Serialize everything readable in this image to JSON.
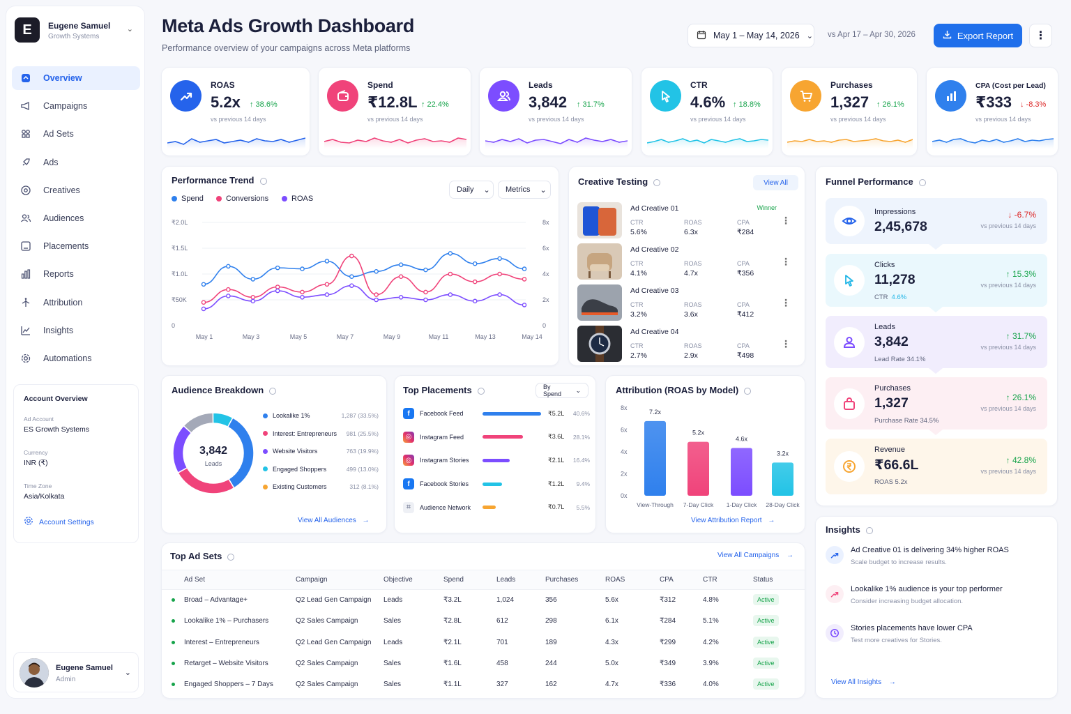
{
  "workspace": {
    "initial": "E",
    "name": "Eugene Samuel",
    "org": "Growth Systems"
  },
  "nav": [
    {
      "label": "Overview",
      "icon": "overview-icon",
      "active": true
    },
    {
      "label": "Campaigns",
      "icon": "megaphone-icon"
    },
    {
      "label": "Ad Sets",
      "icon": "grid-icon"
    },
    {
      "label": "Ads",
      "icon": "rocket-icon"
    },
    {
      "label": "Creatives",
      "icon": "target-icon"
    },
    {
      "label": "Audiences",
      "icon": "users-icon"
    },
    {
      "label": "Placements",
      "icon": "layout-icon"
    },
    {
      "label": "Reports",
      "icon": "bar-chart-icon"
    },
    {
      "label": "Attribution",
      "icon": "route-icon"
    },
    {
      "label": "Insights",
      "icon": "trend-icon"
    },
    {
      "label": "Automations",
      "icon": "gear-icon"
    }
  ],
  "account": {
    "title": "Account Overview",
    "ad_account_label": "Ad Account",
    "ad_account": "ES Growth Systems",
    "currency_label": "Currency",
    "currency": "INR (₹)",
    "timezone_label": "Time Zone",
    "timezone": "Asia/Kolkata",
    "settings": "Account Settings"
  },
  "user": {
    "name": "Eugene Samuel",
    "role": "Admin"
  },
  "header": {
    "title": "Meta Ads Growth Dashboard",
    "subtitle": "Performance overview of your campaigns across Meta platforms",
    "date_range": "May 1 – May 14, 2026",
    "compare": "vs Apr 17 – Apr 30, 2026",
    "export": "Export Report"
  },
  "kpis": [
    {
      "label": "ROAS",
      "value": "5.2x",
      "change": "↑ 38.6%",
      "sub": "vs previous 14 days",
      "color": "#2563eb",
      "icon": "trend-up-icon"
    },
    {
      "label": "Spend",
      "value": "₹12.8L",
      "change": "↑ 22.4%",
      "sub": "vs previous 14 days",
      "color": "#f0437a",
      "icon": "wallet-icon"
    },
    {
      "label": "Leads",
      "value": "3,842",
      "change": "↑ 31.7%",
      "sub": "vs previous 14 days",
      "color": "#7c4dff",
      "icon": "users-icon"
    },
    {
      "label": "CTR",
      "value": "4.6%",
      "change": "↑ 18.8%",
      "sub": "vs previous 14 days",
      "color": "#22c3e6",
      "icon": "cursor-icon"
    },
    {
      "label": "Purchases",
      "value": "1,327",
      "change": "↑ 26.1%",
      "sub": "vs previous 14 days",
      "color": "#f7a531",
      "icon": "cart-icon"
    },
    {
      "label": "CPA (Cost per Lead)",
      "value": "₹333",
      "change": "↓ -8.3%",
      "sub": "vs previous 14 days",
      "color": "#2f80ed",
      "icon": "bar-chart-icon",
      "negative": true
    }
  ],
  "trend": {
    "title": "Performance Trend",
    "interval": "Daily",
    "metrics": "Metrics",
    "legend": [
      {
        "name": "Spend",
        "color": "#2f80ed"
      },
      {
        "name": "Conversions",
        "color": "#f0437a"
      },
      {
        "name": "ROAS",
        "color": "#7c4dff"
      }
    ],
    "y_left": [
      "₹2.0L",
      "₹1.5L",
      "₹1.0L",
      "₹50K",
      "0"
    ],
    "y_right": [
      "8x",
      "6x",
      "4x",
      "2x",
      "0"
    ],
    "x_labels": [
      "May 1",
      "May 3",
      "May 5",
      "May 7",
      "May 9",
      "May 11",
      "May 13",
      "May 14"
    ]
  },
  "chart_data": {
    "type": "line",
    "x": [
      "May 1",
      "May 2",
      "May 3",
      "May 4",
      "May 5",
      "May 6",
      "May 7",
      "May 8",
      "May 9",
      "May 10",
      "May 11",
      "May 12",
      "May 13",
      "May 14"
    ],
    "series": [
      {
        "name": "Spend",
        "values": [
          80000,
          115000,
          90000,
          112000,
          110000,
          125000,
          95000,
          105000,
          118000,
          108000,
          140000,
          120000,
          130000,
          110000
        ]
      },
      {
        "name": "Conversions",
        "values": [
          45000,
          70000,
          55000,
          75000,
          65000,
          80000,
          135000,
          60000,
          95000,
          65000,
          100000,
          85000,
          100000,
          90000
        ]
      },
      {
        "name": "ROAS",
        "values": [
          1.3,
          2.3,
          1.9,
          2.7,
          2.2,
          2.4,
          3.1,
          2.0,
          2.2,
          2.0,
          2.4,
          1.9,
          2.4,
          1.6
        ]
      }
    ],
    "ylim": [
      0,
      200000
    ],
    "y2lim": [
      0,
      8
    ],
    "legend": "top-left",
    "grid": true
  },
  "creatives": {
    "title": "Creative Testing",
    "view_all": "View All",
    "items": [
      {
        "name": "Ad Creative 01",
        "badge": "Winner",
        "ctr": "5.6%",
        "roas": "6.3x",
        "cpa": "₹284",
        "thumb": "phone-image"
      },
      {
        "name": "Ad Creative 02",
        "badge": "",
        "ctr": "4.1%",
        "roas": "4.7x",
        "cpa": "₹356",
        "thumb": "chair-image"
      },
      {
        "name": "Ad Creative 03",
        "badge": "",
        "ctr": "3.2%",
        "roas": "3.6x",
        "cpa": "₹412",
        "thumb": "shoe-image"
      },
      {
        "name": "Ad Creative 04",
        "badge": "",
        "ctr": "2.7%",
        "roas": "2.9x",
        "cpa": "₹498",
        "thumb": "watch-image"
      }
    ],
    "labels": {
      "ctr": "CTR",
      "roas": "ROAS",
      "cpa": "CPA"
    }
  },
  "funnel": {
    "title": "Funnel Performance",
    "stages": [
      {
        "label": "Impressions",
        "value": "2,45,678",
        "change": "↓ -6.7%",
        "sub": "vs previous 14 days",
        "extra": "",
        "negative": true,
        "color": "#2563eb",
        "bg": "#eef4fd",
        "icon": "eye-icon"
      },
      {
        "label": "Clicks",
        "value": "11,278",
        "change": "↑ 15.3%",
        "sub": "vs previous 14 days",
        "extra": "CTR",
        "extra_value": "4.6%",
        "color": "#22b6e6",
        "bg": "#eaf8fd",
        "icon": "cursor-icon"
      },
      {
        "label": "Leads",
        "value": "3,842",
        "change": "↑ 31.7%",
        "sub": "vs previous 14 days",
        "extra": "Lead Rate  34.1%",
        "color": "#7c4dff",
        "bg": "#f1edfd",
        "icon": "user-icon"
      },
      {
        "label": "Purchases",
        "value": "1,327",
        "change": "↑ 26.1%",
        "sub": "vs previous 14 days",
        "extra": "Purchase Rate  34.5%",
        "color": "#f0437a",
        "bg": "#fdeff3",
        "icon": "bag-icon"
      },
      {
        "label": "Revenue",
        "value": "₹66.6L",
        "change": "↑ 42.8%",
        "sub": "vs previous 14 days",
        "extra": "ROAS  5.2x",
        "color": "#f7a531",
        "bg": "#fef6ea",
        "icon": "rupee-icon"
      }
    ]
  },
  "audience": {
    "title": "Audience Breakdown",
    "center_value": "3,842",
    "center_label": "Leads",
    "items": [
      {
        "name": "Lookalike 1%",
        "count": "1,287 (33.5%)",
        "pct": 33.5,
        "color": "#2f80ed"
      },
      {
        "name": "Interest: Entrepreneurs",
        "count": "981 (25.5%)",
        "pct": 25.5,
        "color": "#f0437a"
      },
      {
        "name": "Website Visitors",
        "count": "763 (19.9%)",
        "pct": 19.9,
        "color": "#7c4dff"
      },
      {
        "name": "Engaged Shoppers",
        "count": "499 (13.0%)",
        "pct": 13.0,
        "color": "#a4a9b8"
      },
      {
        "name": "Existing Customers",
        "count": "312 (8.1%)",
        "pct": 8.1,
        "color": "#22c3e6"
      }
    ],
    "legend_colors": [
      "#2f80ed",
      "#f0437a",
      "#7c4dff",
      "#22c3e6",
      "#f7a531"
    ],
    "link": "View All Audiences"
  },
  "placements": {
    "title": "Top Placements",
    "sort": "By Spend",
    "items": [
      {
        "name": "Facebook Feed",
        "value": "₹5.2L",
        "pct": "40.6%",
        "fill": 1.0,
        "color": "#2f80ed",
        "icon": "facebook-icon"
      },
      {
        "name": "Instagram Feed",
        "value": "₹3.6L",
        "pct": "28.1%",
        "fill": 0.69,
        "color": "#f0437a",
        "icon": "instagram-icon"
      },
      {
        "name": "Instagram Stories",
        "value": "₹2.1L",
        "pct": "16.4%",
        "fill": 0.47,
        "color": "#7c4dff",
        "icon": "instagram-icon"
      },
      {
        "name": "Facebook Stories",
        "value": "₹1.2L",
        "pct": "9.4%",
        "fill": 0.33,
        "color": "#22c3e6",
        "icon": "facebook-icon"
      },
      {
        "name": "Audience Network",
        "value": "₹0.7L",
        "pct": "5.5%",
        "fill": 0.23,
        "color": "#f7a531",
        "icon": "network-icon"
      }
    ]
  },
  "attribution": {
    "title": "Attribution (ROAS by Model)",
    "y_ticks": [
      "8x",
      "6x",
      "4x",
      "2x",
      "0x"
    ],
    "bars": [
      {
        "label": "View-Through",
        "value": 7.2,
        "text": "7.2x",
        "color": "#2f80ed"
      },
      {
        "label": "7-Day Click",
        "value": 5.2,
        "text": "5.2x",
        "color": "#f0437a"
      },
      {
        "label": "1-Day Click",
        "value": 4.6,
        "text": "4.6x",
        "color": "#7c4dff"
      },
      {
        "label": "28-Day Click",
        "value": 3.2,
        "text": "3.2x",
        "color": "#22c3e6"
      }
    ],
    "ymax": 8.6,
    "link": "View Attribution Report"
  },
  "adsets": {
    "title": "Top Ad Sets",
    "link": "View All Campaigns",
    "columns": [
      "Ad Set",
      "Campaign",
      "Objective",
      "Spend",
      "Leads",
      "Purchases",
      "ROAS",
      "CPA",
      "CTR",
      "Status"
    ],
    "rows": [
      [
        "Broad – Advantage+",
        "Q2 Lead Gen Campaign",
        "Leads",
        "₹3.2L",
        "1,024",
        "356",
        "5.6x",
        "₹312",
        "4.8%",
        "Active"
      ],
      [
        "Lookalike 1% – Purchasers",
        "Q2 Sales Campaign",
        "Sales",
        "₹2.8L",
        "612",
        "298",
        "6.1x",
        "₹284",
        "5.1%",
        "Active"
      ],
      [
        "Interest – Entrepreneurs",
        "Q2 Lead Gen Campaign",
        "Leads",
        "₹2.1L",
        "701",
        "189",
        "4.3x",
        "₹299",
        "4.2%",
        "Active"
      ],
      [
        "Retarget – Website Visitors",
        "Q2 Sales Campaign",
        "Sales",
        "₹1.6L",
        "458",
        "244",
        "5.0x",
        "₹349",
        "3.9%",
        "Active"
      ],
      [
        "Engaged Shoppers – 7 Days",
        "Q2 Sales Campaign",
        "Sales",
        "₹1.1L",
        "327",
        "162",
        "4.7x",
        "₹336",
        "4.0%",
        "Active"
      ]
    ]
  },
  "insights": {
    "title": "Insights",
    "items": [
      {
        "title": "Ad Creative 01 is delivering 34% higher ROAS",
        "sub": "Scale budget to increase results.",
        "color": "#2563eb",
        "bg": "#eaf1ff",
        "icon": "trend-up-icon"
      },
      {
        "title": "Lookalike 1% audience is your top performer",
        "sub": "Consider increasing budget allocation.",
        "color": "#f0437a",
        "bg": "#fdeff3",
        "icon": "trend-up-icon"
      },
      {
        "title": "Stories placements have lower CPA",
        "sub": "Test more creatives for Stories.",
        "color": "#7c4dff",
        "bg": "#f1edfd",
        "icon": "clock-icon"
      }
    ],
    "link": "View All Insights"
  }
}
